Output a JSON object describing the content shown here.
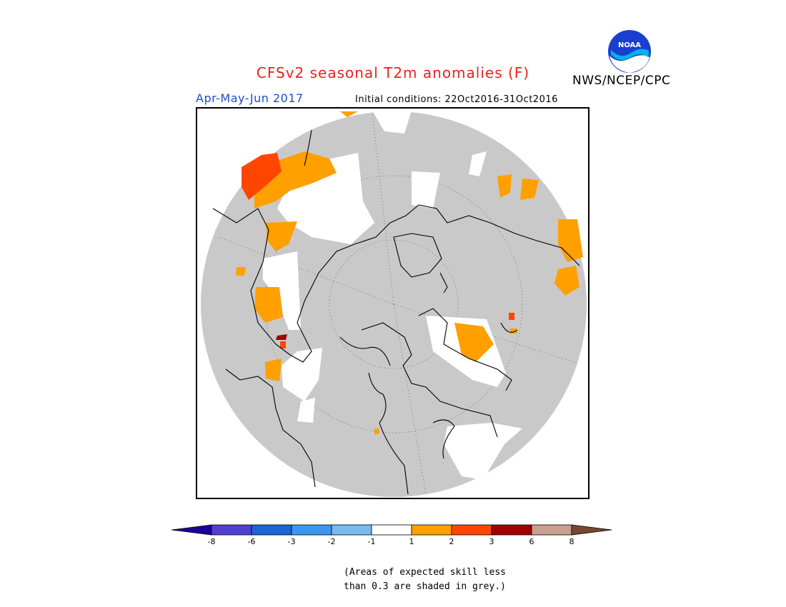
{
  "header": {
    "title": "CFSv2 seasonal T2m anomalies (F)",
    "agency": "NWS/NCEP/CPC",
    "season": "Apr-May-Jun 2017",
    "initial_conditions": "Initial conditions: 22Oct2016-31Oct2016",
    "logo_text": "NOAA"
  },
  "colors": {
    "title": "#e8231a",
    "season": "#1f4ccc",
    "land_masked_grey": "#c9c9c9",
    "near_normal_white": "#ffffff",
    "plus_1_to_2": "#ffa000",
    "plus_2_to_3": "#ff4500",
    "plus_3_to_6": "#a00000"
  },
  "map": {
    "projection": "polar stereographic (north)",
    "region": "Northern Hemisphere"
  },
  "colorbar": {
    "bins": [
      {
        "label": "< -8",
        "color": "#1e0096"
      },
      {
        "label": "-8 to -6",
        "color": "#5040d0"
      },
      {
        "label": "-6 to -3",
        "color": "#1e64d2"
      },
      {
        "label": "-3 to -2",
        "color": "#3c96f0"
      },
      {
        "label": "-2 to -1",
        "color": "#78b9f0"
      },
      {
        "label": "-1 to 1",
        "color": "#ffffff"
      },
      {
        "label": "1 to 2",
        "color": "#ffa000"
      },
      {
        "label": "2 to 3",
        "color": "#ff4500"
      },
      {
        "label": "3 to 6",
        "color": "#a00000"
      },
      {
        "label": "6 to 8",
        "color": "#c8a090"
      },
      {
        "label": "> 8",
        "color": "#784632"
      }
    ],
    "ticks": [
      "-8",
      "-6",
      "-3",
      "-2",
      "-1",
      "1",
      "2",
      "3",
      "6",
      "8"
    ]
  },
  "note": {
    "line1": "(Areas of expected skill less",
    "line2": "than 0.3 are shaded in grey.)"
  }
}
